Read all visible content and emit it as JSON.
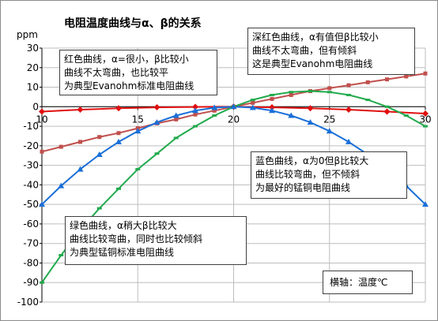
{
  "chart_data": {
    "type": "line",
    "title": "电阻温度曲线与α、β的关系",
    "ylabel": "ppm",
    "xlabel": "横轴：温度℃",
    "xlim": [
      10,
      30
    ],
    "ylim": [
      -100,
      30
    ],
    "xticks": [
      10,
      15,
      20,
      25,
      30
    ],
    "yticks": [
      30,
      20,
      10,
      0,
      -10,
      -20,
      -30,
      -40,
      -50,
      -60,
      -70,
      -80,
      -90,
      -100
    ],
    "grid": true,
    "legend": "none",
    "series": [
      {
        "color": "#e01010",
        "marker": "diamond",
        "x": [
          10,
          12,
          14,
          16,
          18,
          20,
          22,
          24,
          26,
          28,
          30
        ],
        "y": [
          -2.5,
          -1.5,
          -0.8,
          -0.3,
          -0.1,
          0,
          -0.3,
          -0.8,
          -1.5,
          -2.5,
          -3.5
        ]
      },
      {
        "color": "#c0504d",
        "marker": "square",
        "x": [
          10,
          11,
          12,
          13,
          14,
          15,
          16,
          17,
          18,
          19,
          20,
          21,
          22,
          23,
          24,
          25,
          26,
          27,
          28,
          29,
          30
        ],
        "y": [
          -23,
          -20.5,
          -18,
          -15.5,
          -13.5,
          -11,
          -8.5,
          -6.5,
          -4,
          -2,
          0,
          2,
          4,
          6,
          8,
          9.5,
          11,
          12.5,
          14,
          15.5,
          17
        ]
      },
      {
        "color": "#22aa4d",
        "marker": "dash",
        "x": [
          10,
          11,
          12,
          13,
          14,
          15,
          16,
          17,
          18,
          19,
          20,
          21,
          22,
          23,
          24,
          25,
          26,
          27,
          28,
          29,
          30
        ],
        "y": [
          -90,
          -76,
          -63,
          -52,
          -42,
          -32,
          -24,
          -16,
          -10,
          -4.5,
          0,
          3.5,
          6,
          7.5,
          8,
          7.5,
          6,
          3.5,
          0,
          -4.5,
          -10
        ]
      },
      {
        "color": "#1a6fd8",
        "marker": "triangle",
        "x": [
          10,
          11,
          12,
          13,
          14,
          15,
          16,
          17,
          18,
          19,
          20,
          21,
          22,
          23,
          24,
          25,
          26,
          27,
          28,
          29,
          30
        ],
        "y": [
          -50,
          -40.5,
          -32,
          -24.5,
          -18,
          -12.5,
          -8,
          -4.5,
          -2,
          -0.5,
          0,
          -0.5,
          -2,
          -4.5,
          -8,
          -12.5,
          -18,
          -24.5,
          -32,
          -40.5,
          -50
        ]
      }
    ]
  },
  "notes": {
    "red": [
      "红色曲线，α=很小，β比较小",
      "曲线不太弯曲，也比较平",
      "为典型Evanohm标准电阻曲线"
    ],
    "dark": [
      "深红色曲线，α有值但β比较小",
      "曲线不太弯曲，但有倾斜",
      "这是典型Evanohm电阻曲线"
    ],
    "blue": [
      "蓝色曲线，α为0但β比较大",
      "曲线比较弯曲，但不倾斜",
      "为最好的锰铜电阻曲线"
    ],
    "green": [
      "绿色曲线，α稍大β比较大",
      "曲线比较弯曲，同时也比较倾斜",
      "为典型锰铜标准电阻曲线"
    ]
  }
}
